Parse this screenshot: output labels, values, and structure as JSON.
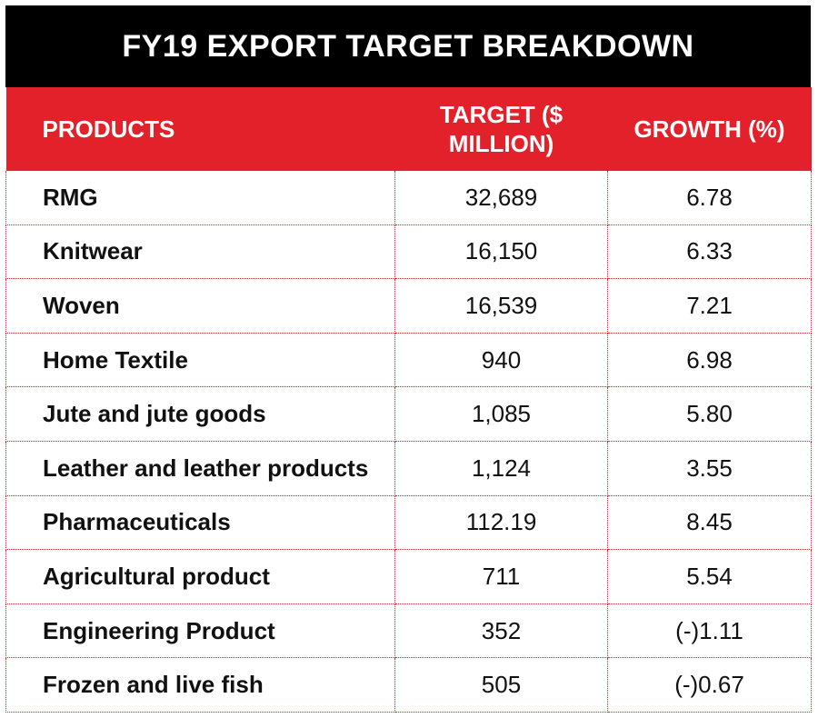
{
  "chart_data": {
    "type": "table",
    "title": "FY19 EXPORT TARGET BREAKDOWN",
    "columns": [
      "PRODUCTS",
      "TARGET ($ MILLION)",
      "GROWTH (%)"
    ],
    "rows": [
      {
        "product": "RMG",
        "target": "32,689",
        "growth": "6.78"
      },
      {
        "product": "Knitwear",
        "target": "16,150",
        "growth": "6.33"
      },
      {
        "product": "Woven",
        "target": "16,539",
        "growth": "7.21"
      },
      {
        "product": "Home Textile",
        "target": "940",
        "growth": "6.98"
      },
      {
        "product": "Jute and jute goods",
        "target": "1,085",
        "growth": "5.80"
      },
      {
        "product": "Leather and leather products",
        "target": "1,124",
        "growth": "3.55"
      },
      {
        "product": "Pharmaceuticals",
        "target": "112.19",
        "growth": "8.45"
      },
      {
        "product": "Agricultural product",
        "target": "711",
        "growth": "5.54"
      },
      {
        "product": "Engineering Product",
        "target": "352",
        "growth": "(-)1.11"
      },
      {
        "product": "Frozen and live fish",
        "target": "505",
        "growth": "(-)0.67"
      }
    ]
  },
  "colors": {
    "title_bg": "#000000",
    "header_bg": "#e3212b",
    "grid": "#e3212b"
  }
}
